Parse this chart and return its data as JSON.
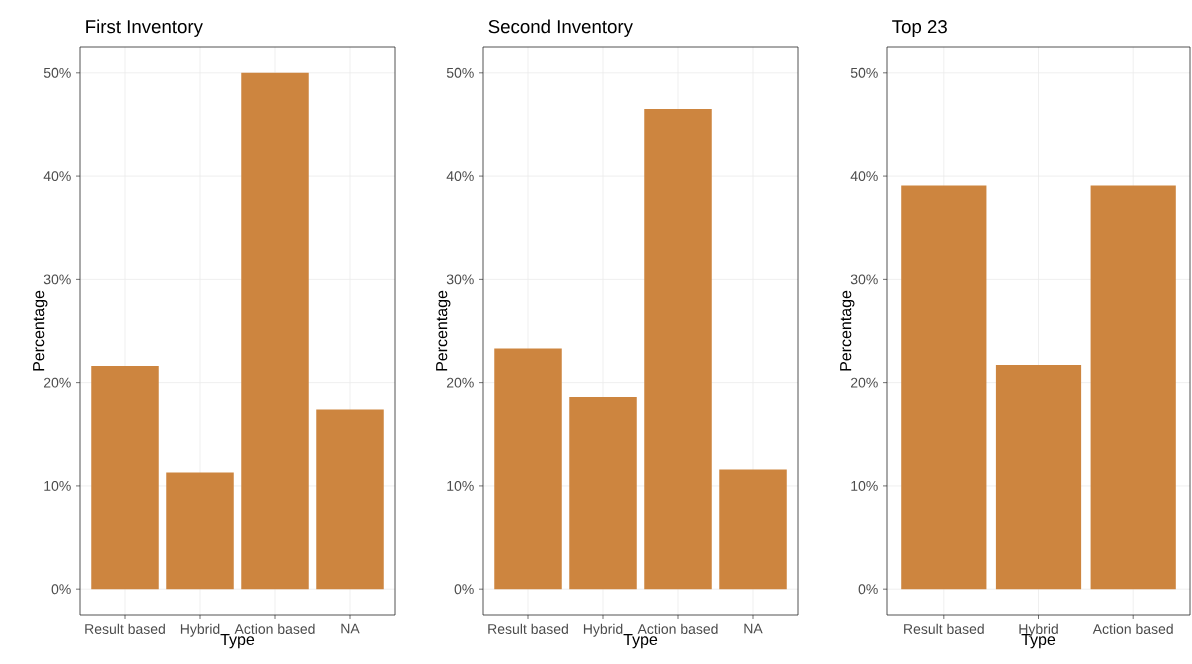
{
  "chart_data": [
    {
      "type": "bar",
      "title": "First Inventory",
      "xlabel": "Type",
      "ylabel": "Percentage",
      "categories": [
        "Result based",
        "Hybrid",
        "Action based",
        "NA"
      ],
      "values": [
        21.6,
        11.3,
        50.0,
        17.4
      ],
      "color": "#cd853f",
      "ylim": [
        -2.5,
        52.5
      ],
      "yticks": [
        {
          "value": 0,
          "label": "0%"
        },
        {
          "value": 10,
          "label": "10%"
        },
        {
          "value": 20,
          "label": "20%"
        },
        {
          "value": 30,
          "label": "30%"
        },
        {
          "value": 40,
          "label": "40%"
        },
        {
          "value": 50,
          "label": "50%"
        }
      ],
      "grid": true
    },
    {
      "type": "bar",
      "title": "Second Inventory",
      "xlabel": "Type",
      "ylabel": "Percentage",
      "categories": [
        "Result based",
        "Hybrid",
        "Action based",
        "NA"
      ],
      "values": [
        23.3,
        18.6,
        46.5,
        11.6
      ],
      "color": "#cd853f",
      "ylim": [
        -2.5,
        52.5
      ],
      "yticks": [
        {
          "value": 0,
          "label": "0%"
        },
        {
          "value": 10,
          "label": "10%"
        },
        {
          "value": 20,
          "label": "20%"
        },
        {
          "value": 30,
          "label": "30%"
        },
        {
          "value": 40,
          "label": "40%"
        },
        {
          "value": 50,
          "label": "50%"
        }
      ],
      "grid": true
    },
    {
      "type": "bar",
      "title": "Top 23",
      "xlabel": "Type",
      "ylabel": "Percentage",
      "categories": [
        "Result based",
        "Hybrid",
        "Action based"
      ],
      "values": [
        39.1,
        21.7,
        39.1
      ],
      "color": "#cd853f",
      "ylim": [
        -2.5,
        52.5
      ],
      "yticks": [
        {
          "value": 0,
          "label": "0%"
        },
        {
          "value": 10,
          "label": "10%"
        },
        {
          "value": 20,
          "label": "20%"
        },
        {
          "value": 30,
          "label": "30%"
        },
        {
          "value": 40,
          "label": "40%"
        },
        {
          "value": 50,
          "label": "50%"
        }
      ],
      "grid": true
    }
  ]
}
